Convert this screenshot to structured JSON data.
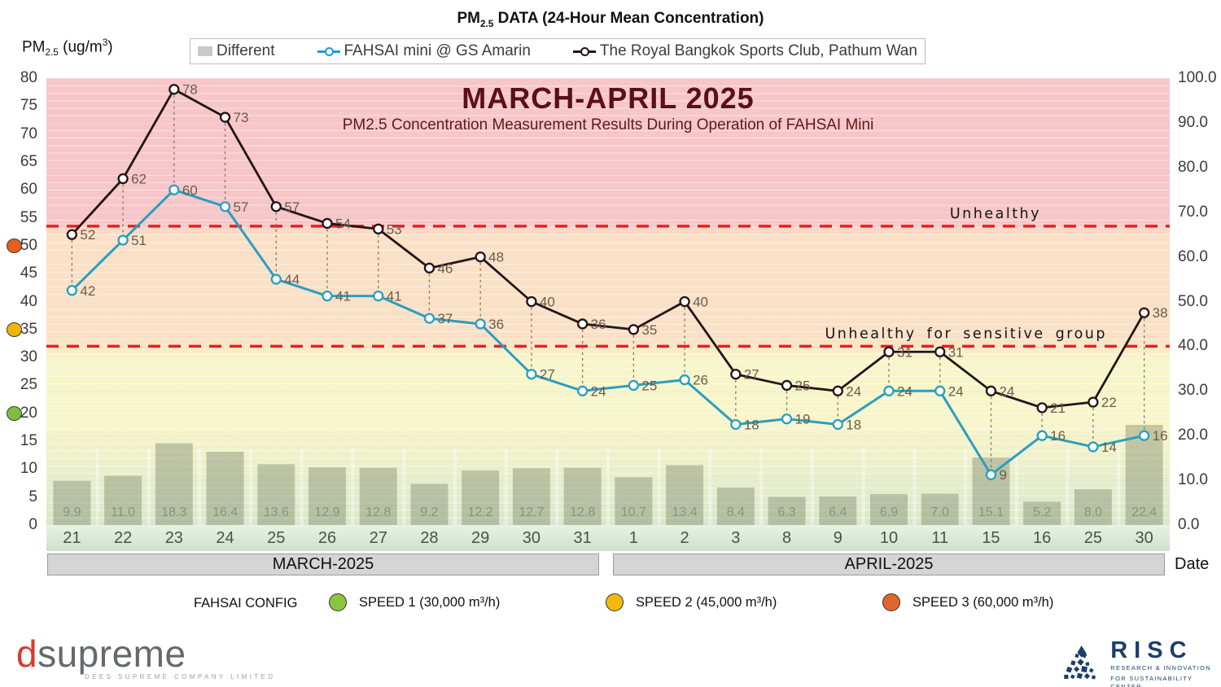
{
  "header": {
    "title": {
      "pm": "PM",
      "sub": "2.5",
      "rest": " DATA (24-Hour Mean Concentration)"
    },
    "y_axis_label": {
      "pm": "PM",
      "sub": "2.5",
      "mid": " (ug/m",
      "sup": "3",
      "end": ")"
    }
  },
  "legend": {
    "items": [
      {
        "label": "Different",
        "type": "bar-swatch",
        "color": "#c9c9c9"
      },
      {
        "label": "FAHSAI mini @ GS Amarin",
        "type": "line-marker",
        "color": "#1e9cd7"
      },
      {
        "label": "The Royal Bangkok Sports Club, Pathum Wan",
        "type": "line-marker",
        "color": "#241414"
      }
    ]
  },
  "chart_data": {
    "type": "combo-bar-line",
    "title": "MARCH-APRIL 2025",
    "subtitle": "PM2.5 Concentration Measurement Results During Operation of FAHSAI Mini",
    "categories": [
      "21",
      "22",
      "23",
      "24",
      "25",
      "26",
      "27",
      "28",
      "29",
      "30",
      "31",
      "1",
      "2",
      "3",
      "8",
      "9",
      "10",
      "11",
      "15",
      "16",
      "25",
      "30"
    ],
    "month_groups": [
      {
        "label": "MARCH-2025",
        "count": 11
      },
      {
        "label": "APRIL-2025",
        "count": 11
      }
    ],
    "left_axis": {
      "min": 0,
      "max": 80,
      "step": 5
    },
    "right_axis": {
      "min": 0,
      "max": 100,
      "step": 10
    },
    "bars": {
      "name": "Different",
      "axis": "right",
      "color": "rgba(124,134,106,0.42)",
      "values": [
        9.9,
        11.0,
        18.3,
        16.4,
        13.6,
        12.9,
        12.8,
        9.2,
        12.2,
        12.7,
        12.8,
        10.7,
        13.4,
        8.4,
        6.3,
        6.4,
        6.9,
        7.0,
        15.1,
        5.2,
        8.0,
        22.4
      ]
    },
    "series": [
      {
        "name": "FAHSAI mini @ GS Amarin",
        "axis": "left",
        "color": "#2b9ec0",
        "values": [
          42,
          51,
          60,
          57,
          44,
          41,
          41,
          37,
          36,
          27,
          24,
          25,
          26,
          18,
          19,
          18,
          24,
          24,
          9,
          16,
          14,
          16
        ]
      },
      {
        "name": "The Royal Bangkok Sports Club, Pathum Wan",
        "axis": "left",
        "color": "#241414",
        "values": [
          52,
          62,
          78,
          73,
          57,
          54,
          53,
          46,
          48,
          40,
          36,
          35,
          40,
          27,
          25,
          24,
          31,
          31,
          24,
          21,
          22,
          38
        ]
      }
    ],
    "thresholds": [
      {
        "label": "Unhealthy",
        "left_value": 53.5,
        "color": "#ed1c24"
      },
      {
        "label": "Unhealthy for sensitive group",
        "left_value": 32,
        "color": "#ed1c24"
      }
    ],
    "speed_markers": [
      {
        "left_value": 50,
        "color": "#e45f1e"
      },
      {
        "left_value": 35,
        "color": "#f0b40a"
      },
      {
        "left_value": 20,
        "color": "#7fbf3f"
      }
    ],
    "date_axis_label": "Date"
  },
  "config_legend": {
    "title": "FAHSAI CONFIG",
    "items": [
      {
        "label": "SPEED 1 (30,000 m³/h)",
        "color": "#8bc53f"
      },
      {
        "label": "SPEED 2 (45,000 m³/h)",
        "color": "#f5b90a"
      },
      {
        "label": "SPEED 3 (60,000 m³/h)",
        "color": "#e0662e"
      }
    ]
  },
  "footer": {
    "dsupreme": {
      "d": "d",
      "rest": "supreme",
      "tagline": "DEES SUPREME COMPANY LIMITED"
    },
    "risc": {
      "name": "RISC",
      "line1": "RESEARCH & INNOVATION",
      "line2": "FOR SUSTAINABILITY CENTER"
    }
  }
}
